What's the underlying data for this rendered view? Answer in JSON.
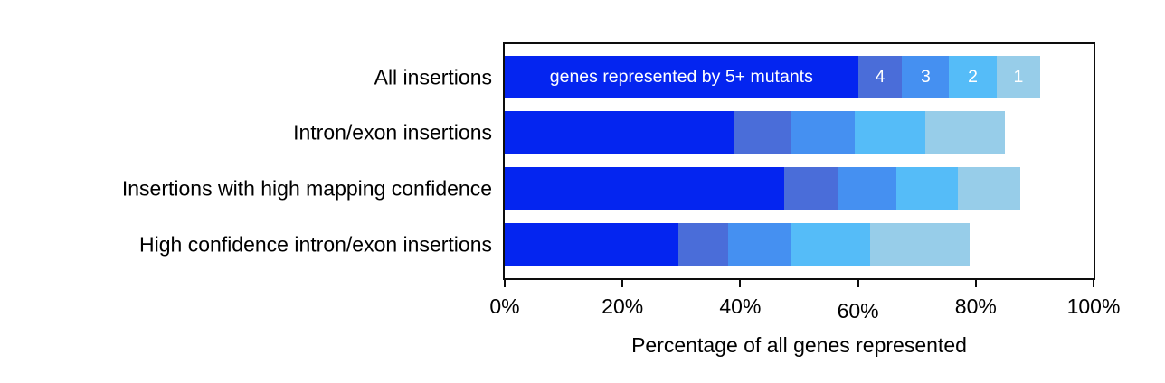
{
  "chart_data": {
    "type": "bar",
    "orientation": "horizontal",
    "stacked": true,
    "title": "",
    "xlabel": "Percentage of all genes represented",
    "ylabel": "",
    "xlim": [
      0,
      100
    ],
    "grid": false,
    "legend_position": "inside-first-bar",
    "categories": [
      "All insertions",
      "Intron/exon insertions",
      "Insertions with high mapping confidence",
      "High confidence intron/exon insertions"
    ],
    "series": [
      {
        "name": "genes represented by 5+ mutants",
        "bar_label": "genes represented by 5+ mutants",
        "color": "#0425f0",
        "values": [
          60.0,
          39.0,
          47.5,
          29.5
        ]
      },
      {
        "name": "4",
        "bar_label": "4",
        "color": "#4a6dd9",
        "values": [
          7.5,
          9.5,
          9.0,
          8.5
        ]
      },
      {
        "name": "3",
        "bar_label": "3",
        "color": "#4590f1",
        "values": [
          8.0,
          11.0,
          10.0,
          10.5
        ]
      },
      {
        "name": "2",
        "bar_label": "2",
        "color": "#55bcf8",
        "values": [
          8.0,
          12.0,
          10.5,
          13.5
        ]
      },
      {
        "name": "1",
        "bar_label": "1",
        "color": "#97cde9",
        "values": [
          7.5,
          13.5,
          10.5,
          17.0
        ]
      }
    ],
    "bar_totals": [
      91,
      85,
      87.5,
      79
    ],
    "xticks": [
      {
        "value": 0,
        "label": "0%"
      },
      {
        "value": 20,
        "label": "20%"
      },
      {
        "value": 40,
        "label": "40%"
      },
      {
        "value": 60,
        "label": "60%"
      },
      {
        "value": 80,
        "label": "80%"
      },
      {
        "value": 100,
        "label": "100%"
      }
    ],
    "in_bar_label_color": "#ffffff",
    "frame_color": "#0d0d0d"
  }
}
